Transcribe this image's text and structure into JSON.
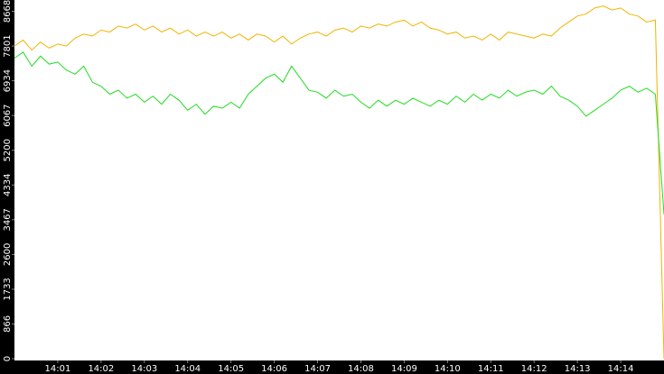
{
  "chart_data": {
    "type": "line",
    "x": [
      840.0,
      840.2,
      840.4,
      840.6,
      840.8,
      841.0,
      841.2,
      841.4,
      841.6,
      841.8,
      842.0,
      842.2,
      842.4,
      842.6,
      842.8,
      843.0,
      843.2,
      843.4,
      843.6,
      843.8,
      844.0,
      844.2,
      844.4,
      844.6,
      844.8,
      845.0,
      845.2,
      845.4,
      845.6,
      845.8,
      846.0,
      846.2,
      846.4,
      846.6,
      846.8,
      847.0,
      847.2,
      847.4,
      847.6,
      847.8,
      848.0,
      848.2,
      848.4,
      848.6,
      848.8,
      849.0,
      849.2,
      849.4,
      849.6,
      849.8,
      850.0,
      850.2,
      850.4,
      850.6,
      850.8,
      851.0,
      851.2,
      851.4,
      851.6,
      851.8,
      852.0,
      852.2,
      852.4,
      852.6,
      852.8,
      853.0,
      853.2,
      853.4,
      853.6,
      853.8,
      854.0,
      854.2,
      854.4,
      854.6,
      854.8,
      855.0
    ],
    "series": [
      {
        "color": "#f0b400",
        "values": [
          7800,
          7950,
          7700,
          7900,
          7750,
          7850,
          7800,
          8000,
          8100,
          8050,
          8200,
          8150,
          8300,
          8250,
          8350,
          8200,
          8300,
          8150,
          8250,
          8100,
          8200,
          8050,
          8150,
          8050,
          8150,
          8000,
          8100,
          7950,
          8100,
          8050,
          7900,
          8050,
          7850,
          8000,
          8100,
          8150,
          8050,
          8200,
          8250,
          8150,
          8300,
          8250,
          8350,
          8300,
          8400,
          8450,
          8300,
          8400,
          8250,
          8200,
          8100,
          8150,
          8000,
          8050,
          7950,
          8100,
          7950,
          8150,
          8100,
          8050,
          8000,
          8100,
          8050,
          8250,
          8400,
          8550,
          8600,
          8750,
          8800,
          8700,
          8750,
          8600,
          8550,
          8400,
          8450,
          0
        ]
      },
      {
        "color": "#22dd22",
        "values": [
          7500,
          7650,
          7300,
          7550,
          7350,
          7400,
          7200,
          7100,
          7300,
          6900,
          6800,
          6600,
          6700,
          6500,
          6600,
          6400,
          6550,
          6350,
          6600,
          6450,
          6200,
          6350,
          6100,
          6300,
          6250,
          6400,
          6250,
          6600,
          6800,
          7000,
          7100,
          6900,
          7300,
          7000,
          6700,
          6650,
          6500,
          6700,
          6550,
          6600,
          6400,
          6250,
          6450,
          6300,
          6450,
          6350,
          6500,
          6400,
          6300,
          6450,
          6350,
          6550,
          6400,
          6600,
          6450,
          6600,
          6500,
          6700,
          6550,
          6650,
          6700,
          6600,
          6800,
          6550,
          6450,
          6300,
          6050,
          6200,
          6350,
          6500,
          6700,
          6800,
          6650,
          6750,
          6600,
          3600
        ]
      }
    ],
    "xlim": [
      840,
      855
    ],
    "xticks": [
      {
        "value": 841,
        "label": "14:01"
      },
      {
        "value": 842,
        "label": "14:02"
      },
      {
        "value": 843,
        "label": "14:03"
      },
      {
        "value": 844,
        "label": "14:04"
      },
      {
        "value": 845,
        "label": "14:05"
      },
      {
        "value": 846,
        "label": "14:06"
      },
      {
        "value": 847,
        "label": "14:07"
      },
      {
        "value": 848,
        "label": "14:08"
      },
      {
        "value": 849,
        "label": "14:09"
      },
      {
        "value": 850,
        "label": "14:10"
      },
      {
        "value": 851,
        "label": "14:11"
      },
      {
        "value": 852,
        "label": "14:12"
      },
      {
        "value": 853,
        "label": "14:13"
      },
      {
        "value": 854,
        "label": "14:14"
      }
    ],
    "ylim": [
      0,
      8950
    ],
    "yticks": [
      0,
      866,
      1733,
      2600,
      3467,
      4334,
      5200,
      6067,
      6934,
      7801,
      8668
    ]
  }
}
